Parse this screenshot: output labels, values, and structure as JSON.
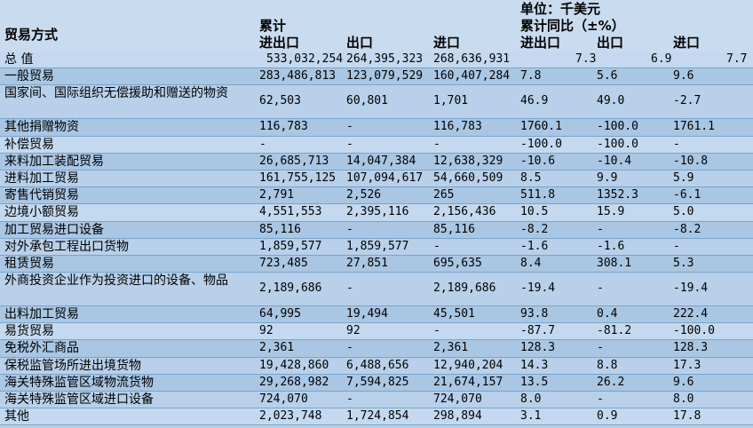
{
  "header": {
    "unit": "单位：千美元",
    "col_method": "贸易方式",
    "col_cumulative": "累计",
    "col_cumulative_yoy": "累计同比（±%）",
    "col_total": "进出口",
    "col_export": "出口",
    "col_import": "进口",
    "col_yoy_total": "进出口",
    "col_yoy_export": "出口",
    "col_yoy_import": "进口"
  },
  "rows": [
    {
      "name": "总  值",
      "total": "533,032,254",
      "export": "264,395,323",
      "import": "268,636,931",
      "yoy_total": "7.3",
      "yoy_export": "6.9",
      "yoy_import": "7.7"
    },
    {
      "name": "一般贸易",
      "total": "283,486,813",
      "export": "123,079,529",
      "import": "160,407,284",
      "yoy_total": "7.8",
      "yoy_export": "5.6",
      "yoy_import": "9.6"
    },
    {
      "name": "国家间、国际组织无偿援助和赠送的物资",
      "total": "62,503",
      "export": "60,801",
      "import": "1,701",
      "yoy_total": "46.9",
      "yoy_export": "49.0",
      "yoy_import": "-2.7"
    },
    {
      "name": "其他捐赠物资",
      "total": "116,783",
      "export": "-",
      "import": "116,783",
      "yoy_total": "1760.1",
      "yoy_export": "-100.0",
      "yoy_import": "1761.1"
    },
    {
      "name": "补偿贸易",
      "total": "-",
      "export": "-",
      "import": "-",
      "yoy_total": "-100.0",
      "yoy_export": "-100.0",
      "yoy_import": "-"
    },
    {
      "name": "来料加工装配贸易",
      "total": "26,685,713",
      "export": "14,047,384",
      "import": "12,638,329",
      "yoy_total": "-10.6",
      "yoy_export": "-10.4",
      "yoy_import": "-10.8"
    },
    {
      "name": "进料加工贸易",
      "total": "161,755,125",
      "export": "107,094,617",
      "import": "54,660,509",
      "yoy_total": "8.5",
      "yoy_export": "9.9",
      "yoy_import": "5.9"
    },
    {
      "name": "寄售代销贸易",
      "total": "2,791",
      "export": "2,526",
      "import": "265",
      "yoy_total": "511.8",
      "yoy_export": "1352.3",
      "yoy_import": "-6.1"
    },
    {
      "name": "边境小额贸易",
      "total": "4,551,553",
      "export": "2,395,116",
      "import": "2,156,436",
      "yoy_total": "10.5",
      "yoy_export": "15.9",
      "yoy_import": "5.0"
    },
    {
      "name": "加工贸易进口设备",
      "total": "85,116",
      "export": "-",
      "import": "85,116",
      "yoy_total": "-8.2",
      "yoy_export": "-",
      "yoy_import": "-8.2"
    },
    {
      "name": "对外承包工程出口货物",
      "total": "1,859,577",
      "export": "1,859,577",
      "import": "-",
      "yoy_total": "-1.6",
      "yoy_export": "-1.6",
      "yoy_import": "-"
    },
    {
      "name": "租赁贸易",
      "total": "723,485",
      "export": "27,851",
      "import": "695,635",
      "yoy_total": "8.4",
      "yoy_export": "308.1",
      "yoy_import": "5.3"
    },
    {
      "name": "外商投资企业作为投资进口的设备、物品",
      "total": "2,189,686",
      "export": "-",
      "import": "2,189,686",
      "yoy_total": "-19.4",
      "yoy_export": "-",
      "yoy_import": "-19.4"
    },
    {
      "name": "出料加工贸易",
      "total": "64,995",
      "export": "19,494",
      "import": "45,501",
      "yoy_total": "93.8",
      "yoy_export": "0.4",
      "yoy_import": "222.4"
    },
    {
      "name": "易货贸易",
      "total": "92",
      "export": "92",
      "import": "-",
      "yoy_total": "-87.7",
      "yoy_export": "-81.2",
      "yoy_import": "-100.0"
    },
    {
      "name": "免税外汇商品",
      "total": "2,361",
      "export": "-",
      "import": "2,361",
      "yoy_total": "128.3",
      "yoy_export": "-",
      "yoy_import": "128.3"
    },
    {
      "name": "保税监管场所进出境货物",
      "total": "19,428,860",
      "export": "6,488,656",
      "import": "12,940,204",
      "yoy_total": "14.3",
      "yoy_export": "8.8",
      "yoy_import": "17.3"
    },
    {
      "name": "海关特殊监管区域物流货物",
      "total": "29,268,982",
      "export": "7,594,825",
      "import": "21,674,157",
      "yoy_total": "13.5",
      "yoy_export": "26.2",
      "yoy_import": "9.6"
    },
    {
      "name": "海关特殊监管区域进口设备",
      "total": "724,070",
      "export": "-",
      "import": "724,070",
      "yoy_total": "8.0",
      "yoy_export": "-",
      "yoy_import": "8.0"
    },
    {
      "name": "其他",
      "total": "2,023,748",
      "export": "1,724,854",
      "import": "298,894",
      "yoy_total": "3.1",
      "yoy_export": "0.9",
      "yoy_import": "17.8"
    }
  ]
}
